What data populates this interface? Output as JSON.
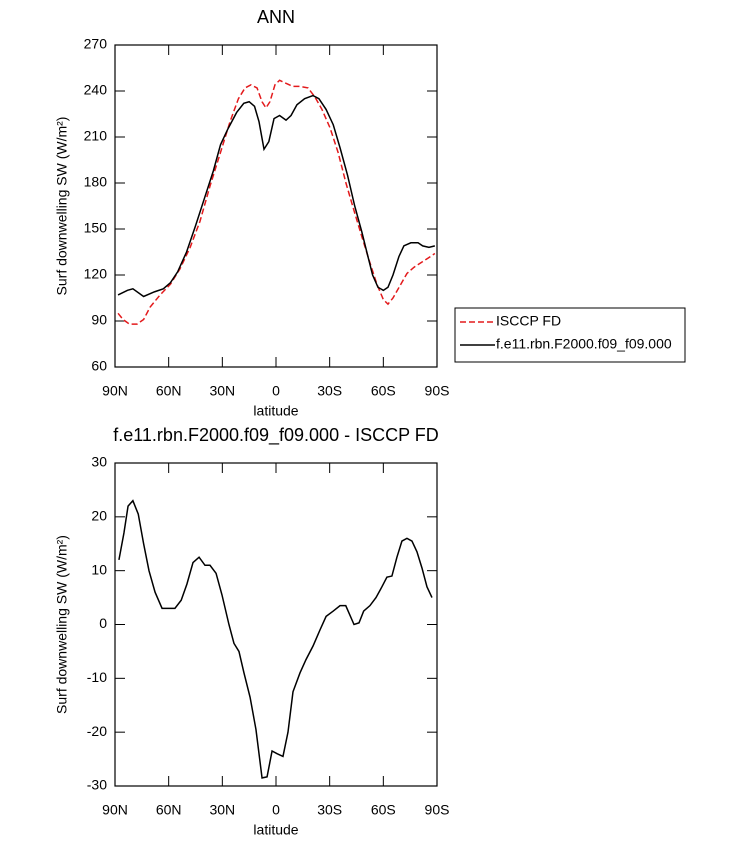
{
  "chart_data": [
    {
      "type": "line",
      "title": "ANN",
      "xlabel": "latitude",
      "ylabel": "Surf downwelling SW (W/m²)",
      "xlim": [
        90,
        -90
      ],
      "ylim": [
        60,
        270
      ],
      "xticks": [
        {
          "value": 90,
          "label": "90N"
        },
        {
          "value": 60,
          "label": "60N"
        },
        {
          "value": 30,
          "label": "30N"
        },
        0,
        {
          "value": -30,
          "label": "30S"
        },
        {
          "value": -60,
          "label": "60S"
        },
        {
          "value": -90,
          "label": "90S"
        }
      ],
      "yticks": [
        60,
        90,
        120,
        150,
        180,
        210,
        240,
        270
      ],
      "legend": "right",
      "series": [
        {
          "name": "ISCCP FD",
          "color": "#e31a1c",
          "dash": true,
          "x": [
            88.3,
            85.5,
            82,
            77.7,
            74,
            70.4,
            64.8,
            59,
            53.7,
            48,
            42.5,
            36.9,
            31,
            25.7,
            21,
            17.3,
            14,
            10.6,
            7.8,
            5.6,
            3.4,
            0.6,
            -2,
            -5.6,
            -9.5,
            -13.4,
            -17.9,
            -21.8,
            -25.7,
            -30.2,
            -34.7,
            -39.1,
            -43.6,
            -48,
            -52.5,
            -56.4,
            -60,
            -62.6,
            -65.4,
            -69.3,
            -73.2,
            -77.1,
            -81,
            -85,
            -88.8
          ],
          "values": [
            95,
            91,
            88,
            88,
            91,
            99,
            107,
            114,
            124,
            138,
            155,
            178,
            200,
            220,
            235,
            242,
            244,
            242,
            233,
            229,
            233,
            244,
            247,
            245,
            243,
            243,
            242,
            236,
            228,
            216,
            200,
            180,
            162,
            145,
            128,
            114,
            104,
            101,
            105,
            113,
            121,
            125,
            128,
            131,
            134
          ]
        },
        {
          "name": "f.e11.rbn.F2000.f09_f09.000",
          "color": "#000000",
          "dash": false,
          "x": [
            88.3,
            83,
            80,
            74,
            68,
            63,
            59,
            55,
            50,
            45,
            40,
            35,
            31,
            27,
            22,
            18,
            15,
            12,
            9.5,
            6.7,
            4,
            1.1,
            -2,
            -5.6,
            -8.4,
            -11.7,
            -16,
            -20.7,
            -24,
            -28,
            -32,
            -35.8,
            -40,
            -44,
            -48,
            -51.4,
            -54,
            -57,
            -60,
            -62.6,
            -65.4,
            -68.7,
            -71.5,
            -75.4,
            -79.4,
            -82,
            -85.5,
            -88.8
          ],
          "values": [
            107,
            110,
            111,
            106,
            109,
            111,
            115,
            122,
            135,
            152,
            170,
            188,
            205,
            215,
            226,
            232,
            233,
            230,
            220,
            202,
            207,
            222,
            224,
            221,
            224,
            231,
            235,
            237,
            235,
            228,
            218,
            203,
            185,
            165,
            148,
            132,
            120,
            112,
            110,
            112,
            120,
            132,
            139,
            141,
            141,
            139,
            138,
            139
          ]
        }
      ]
    },
    {
      "type": "line",
      "title": "f.e11.rbn.F2000.f09_f09.000 - ISCCP FD",
      "xlabel": "latitude",
      "ylabel": "Surf downwelling SW (W/m²)",
      "xlim": [
        90,
        -90
      ],
      "ylim": [
        -30,
        30
      ],
      "xticks": [
        {
          "value": 90,
          "label": "90N"
        },
        {
          "value": 60,
          "label": "60N"
        },
        {
          "value": 30,
          "label": "30N"
        },
        0,
        {
          "value": -30,
          "label": "30S"
        },
        {
          "value": -60,
          "label": "60S"
        },
        {
          "value": -90,
          "label": "90S"
        }
      ],
      "yticks": [
        -30,
        -20,
        -10,
        0,
        10,
        20,
        30
      ],
      "series": [
        {
          "color": "#000000",
          "dash": false,
          "x": [
            87.8,
            85,
            82.7,
            80,
            77,
            74,
            71,
            67.6,
            63.7,
            59.8,
            56.5,
            53,
            49.8,
            46.4,
            43,
            39.7,
            36.9,
            33.5,
            30.2,
            26.3,
            23.5,
            20.7,
            17.9,
            14.5,
            11.2,
            7.8,
            5,
            2.2,
            -0.6,
            -3.9,
            -6.7,
            -9.5,
            -13.4,
            -16.8,
            -20.7,
            -24.6,
            -28,
            -32,
            -35.8,
            -39,
            -43.6,
            -46.4,
            -49,
            -52.5,
            -55.9,
            -59.2,
            -62,
            -64.8,
            -67.6,
            -70.4,
            -73.2,
            -76,
            -78.8,
            -81.6,
            -84.4,
            -87.2
          ],
          "values": [
            12,
            17,
            22,
            23,
            20.5,
            15,
            10,
            6,
            3,
            3,
            3,
            4.5,
            7.5,
            11.5,
            12.5,
            11,
            11,
            9.5,
            5.5,
            0,
            -3.5,
            -5,
            -9,
            -13.5,
            -19.5,
            -28.5,
            -28.3,
            -23.5,
            -24,
            -24.5,
            -20,
            -12.5,
            -9,
            -6.5,
            -4,
            -1,
            1.5,
            2.5,
            3.5,
            3.5,
            0,
            0.3,
            2.5,
            3.5,
            5,
            7,
            8.8,
            9,
            12.5,
            15.5,
            16,
            15.5,
            13.5,
            10.5,
            7,
            5
          ]
        }
      ]
    }
  ]
}
